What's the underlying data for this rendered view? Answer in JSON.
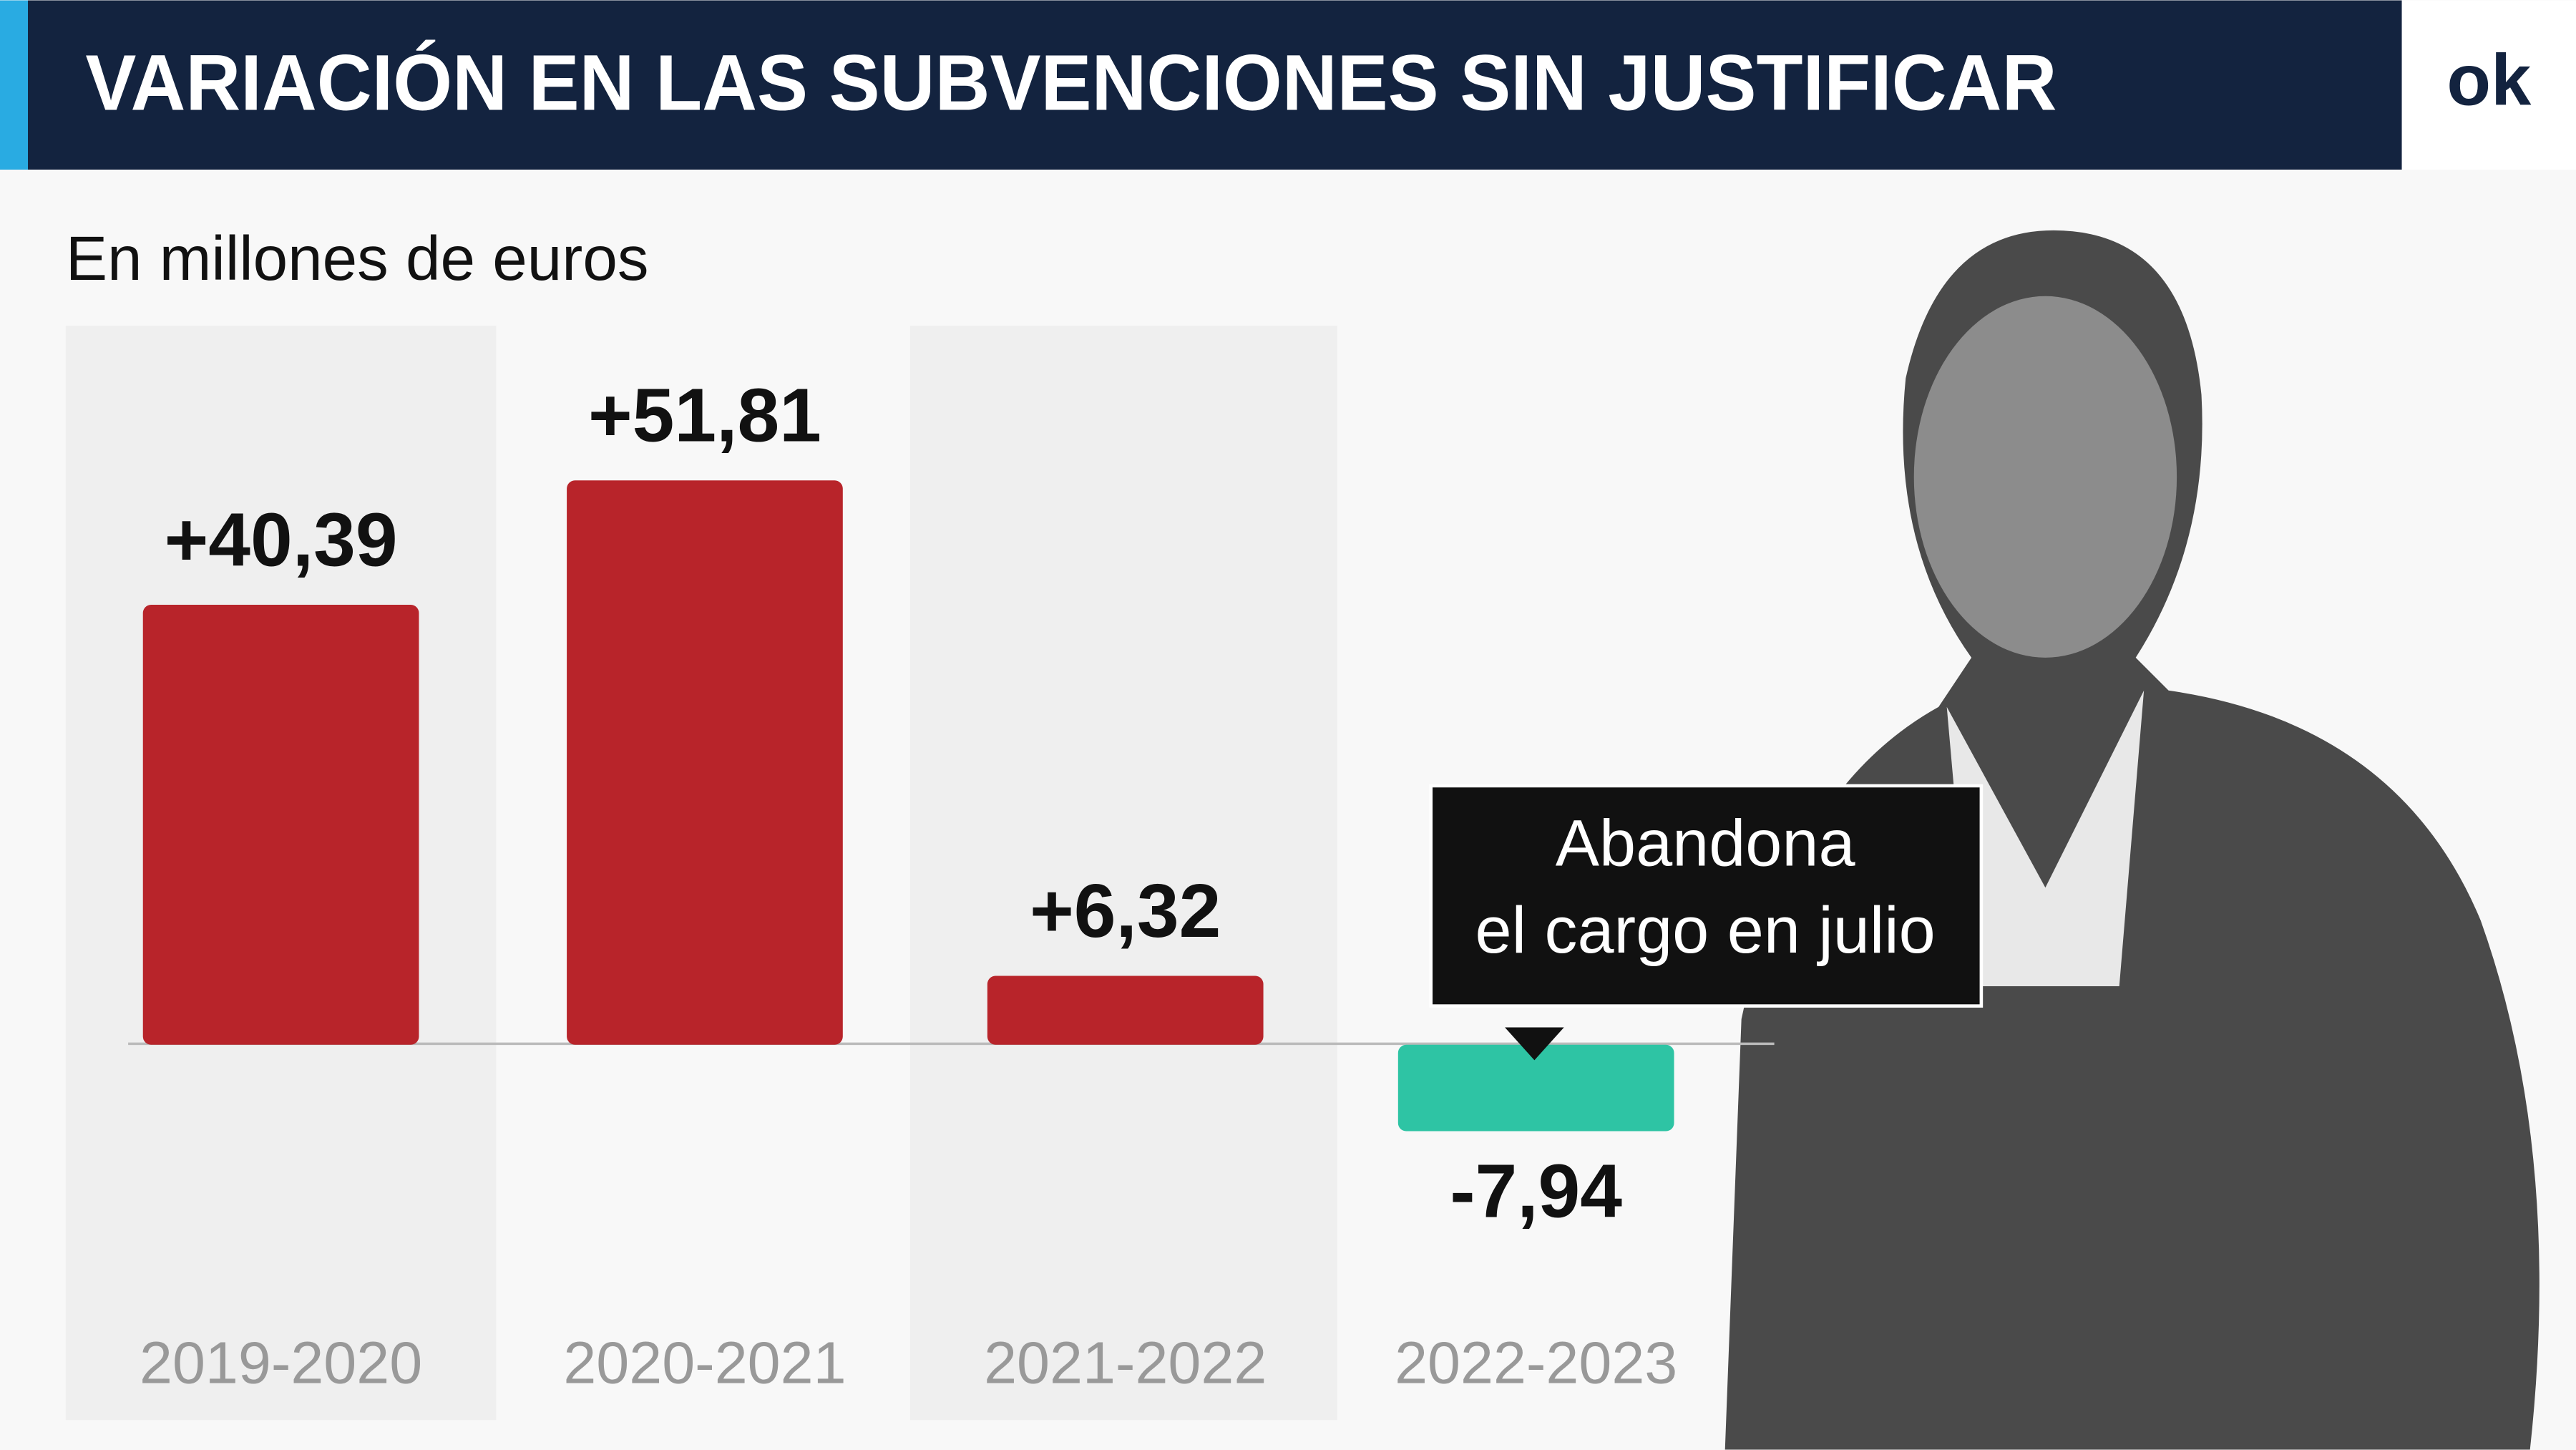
{
  "chart_data": {
    "type": "bar",
    "title": "VARIACIÓN EN LAS SUBVENCIONES SIN JUSTIFICAR",
    "subtitle": "En millones de euros",
    "logo": "ok",
    "categories": [
      "2019-2020",
      "2020-2021",
      "2021-2022",
      "2022-2023"
    ],
    "values": [
      40.39,
      51.81,
      6.32,
      -7.94
    ],
    "value_labels": [
      "+40,39",
      "+51,81",
      "+6,32",
      "-7,94"
    ],
    "color": "#b8242a",
    "negative_color": "#2ec4a4",
    "ylim": [
      -15,
      55
    ],
    "annotation": [
      "Abandona",
      "el cargo en julio"
    ]
  }
}
